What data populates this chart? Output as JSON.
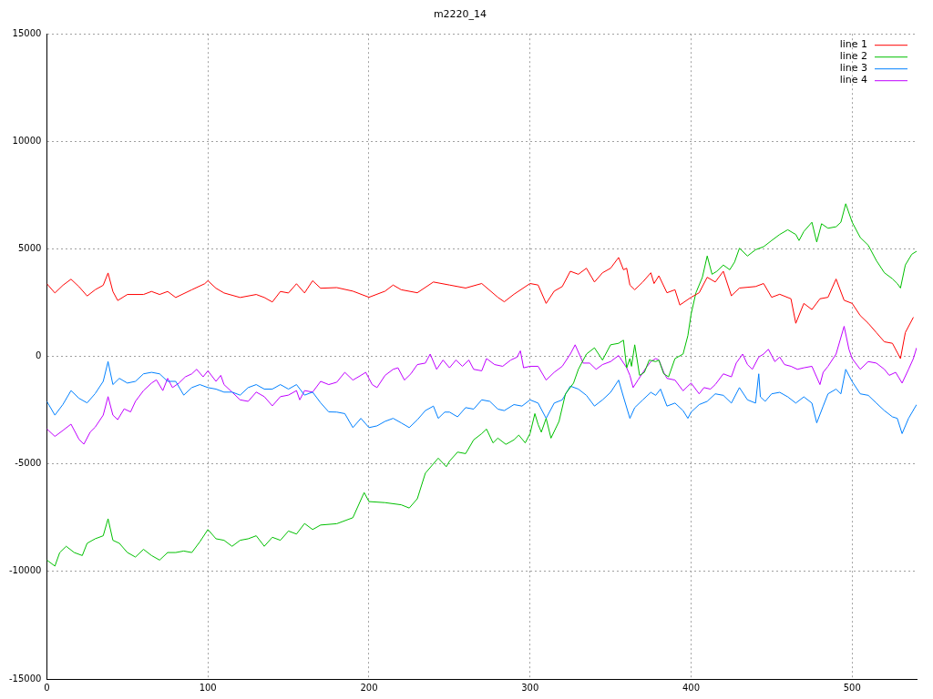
{
  "chart_data": {
    "type": "line",
    "title": "m2220_14",
    "xlim": [
      0,
      540
    ],
    "xticks": [
      0,
      100,
      200,
      300,
      400,
      500
    ],
    "ylim": [
      -15000,
      15000
    ],
    "yticks": [
      -15000,
      -10000,
      -5000,
      0,
      5000,
      10000,
      15000
    ],
    "grid": true,
    "legend": "top right",
    "marker": "none",
    "line_style": "solid",
    "series": [
      {
        "name": "line 1",
        "color": "#ff0000",
        "x": [
          0,
          5,
          10,
          15,
          20,
          25,
          30,
          35,
          38,
          41,
          44,
          50,
          60,
          65,
          70,
          75,
          80,
          90,
          98,
          100,
          105,
          110,
          120,
          130,
          135,
          140,
          145,
          150,
          155,
          160,
          165,
          170,
          180,
          190,
          200,
          210,
          215,
          220,
          230,
          240,
          250,
          260,
          270,
          280,
          284,
          290,
          300,
          305,
          310,
          315,
          320,
          325,
          330,
          335,
          340,
          345,
          350,
          355,
          358,
          360,
          362,
          365,
          370,
          375,
          377,
          380,
          385,
          390,
          393,
          400,
          405,
          410,
          415,
          420,
          425,
          430,
          440,
          445,
          450,
          455,
          462,
          465,
          470,
          475,
          480,
          485,
          490,
          495,
          500,
          505,
          510,
          515,
          520,
          525,
          530,
          533,
          538
        ],
        "values": [
          3380,
          2950,
          3310,
          3590,
          3240,
          2810,
          3100,
          3310,
          3880,
          3020,
          2600,
          2880,
          2880,
          3020,
          2880,
          3020,
          2740,
          3100,
          3380,
          3520,
          3170,
          2950,
          2740,
          2880,
          2740,
          2530,
          3020,
          2950,
          3380,
          2950,
          3520,
          3170,
          3200,
          3035,
          2750,
          3035,
          3320,
          3100,
          2960,
          3460,
          3320,
          3180,
          3390,
          2750,
          2540,
          2890,
          3390,
          3320,
          2465,
          3035,
          3250,
          3960,
          3820,
          4100,
          3460,
          3890,
          4100,
          4600,
          4030,
          4100,
          3320,
          3100,
          3460,
          3890,
          3390,
          3750,
          2960,
          3100,
          2390,
          2750,
          2960,
          3680,
          3460,
          3960,
          2820,
          3180,
          3250,
          3390,
          2750,
          2890,
          2680,
          1540,
          2465,
          2180,
          2680,
          2750,
          3600,
          2610,
          2465,
          1900,
          1540,
          1110,
          680,
          610,
          -100,
          1110,
          1820
        ]
      },
      {
        "name": "line 2",
        "color": "#00c000",
        "x": [
          0,
          5,
          8,
          12,
          17,
          22,
          25,
          30,
          35,
          38,
          41,
          45,
          50,
          55,
          60,
          65,
          70,
          75,
          80,
          85,
          90,
          95,
          100,
          105,
          110,
          115,
          120,
          125,
          130,
          135,
          140,
          145,
          150,
          155,
          160,
          165,
          170,
          180,
          190,
          197,
          200,
          210,
          220,
          225,
          230,
          235,
          243,
          248,
          250,
          255,
          260,
          265,
          270,
          273,
          277,
          280,
          285,
          290,
          293,
          297,
          300,
          303,
          305,
          307,
          310,
          313,
          318,
          322,
          327,
          330,
          335,
          340,
          345,
          350,
          355,
          358,
          360,
          362,
          363,
          365,
          368,
          371,
          374,
          378,
          380,
          383,
          386,
          390,
          395,
          398,
          400,
          403,
          407,
          410,
          413,
          416,
          420,
          424,
          427,
          430,
          435,
          440,
          445,
          450,
          455,
          460,
          465,
          467,
          470,
          475,
          478,
          481,
          485,
          490,
          493,
          496,
          500,
          505,
          510,
          515,
          520,
          525,
          528,
          530,
          533,
          537,
          540
        ],
        "values": [
          -9470,
          -9750,
          -9120,
          -8830,
          -9120,
          -9260,
          -8690,
          -8480,
          -8340,
          -7550,
          -8550,
          -8690,
          -9120,
          -9330,
          -8970,
          -9260,
          -9470,
          -9120,
          -9120,
          -9050,
          -9120,
          -8620,
          -8050,
          -8480,
          -8550,
          -8830,
          -8550,
          -8480,
          -8340,
          -8830,
          -8410,
          -8550,
          -8120,
          -8260,
          -7770,
          -8050,
          -7840,
          -7780,
          -7500,
          -6330,
          -6750,
          -6800,
          -6900,
          -7050,
          -6620,
          -5430,
          -4730,
          -5130,
          -4870,
          -4450,
          -4520,
          -3880,
          -3590,
          -3380,
          -4020,
          -3800,
          -4090,
          -3880,
          -3660,
          -4020,
          -3590,
          -2660,
          -3160,
          -3520,
          -2880,
          -3800,
          -3020,
          -1740,
          -1240,
          -600,
          110,
          400,
          -170,
          540,
          610,
          755,
          -530,
          -100,
          -460,
          540,
          -880,
          -740,
          -170,
          -240,
          -170,
          -810,
          -950,
          -100,
          110,
          970,
          1970,
          2960,
          3680,
          4670,
          3820,
          3960,
          4250,
          4030,
          4390,
          5030,
          4670,
          4960,
          5100,
          5390,
          5670,
          5890,
          5670,
          5390,
          5810,
          6240,
          5320,
          6170,
          5960,
          6030,
          6240,
          7100,
          6240,
          5530,
          5170,
          4460,
          3890,
          3610,
          3390,
          3180,
          4250,
          4750,
          4890
        ]
      },
      {
        "name": "line 3",
        "color": "#0080ff",
        "x": [
          0,
          5,
          10,
          15,
          20,
          25,
          30,
          35,
          38,
          41,
          45,
          50,
          55,
          60,
          65,
          70,
          75,
          80,
          85,
          90,
          95,
          100,
          105,
          110,
          115,
          120,
          125,
          130,
          135,
          140,
          145,
          150,
          155,
          160,
          165,
          170,
          175,
          180,
          185,
          190,
          195,
          200,
          205,
          210,
          215,
          220,
          225,
          230,
          235,
          240,
          243,
          247,
          250,
          255,
          260,
          265,
          270,
          275,
          280,
          284,
          290,
          295,
          300,
          305,
          310,
          315,
          320,
          325,
          330,
          335,
          340,
          345,
          350,
          355,
          358,
          362,
          365,
          370,
          375,
          378,
          381,
          385,
          390,
          395,
          398,
          400,
          405,
          410,
          415,
          420,
          425,
          430,
          435,
          440,
          442,
          443,
          446,
          450,
          455,
          460,
          465,
          470,
          475,
          478,
          482,
          485,
          490,
          493,
          496,
          500,
          505,
          510,
          515,
          520,
          525,
          528,
          531,
          535,
          540
        ],
        "values": [
          -2090,
          -2730,
          -2230,
          -1590,
          -1950,
          -2160,
          -1730,
          -1160,
          -240,
          -1310,
          -1020,
          -1240,
          -1160,
          -810,
          -740,
          -810,
          -1160,
          -1160,
          -1800,
          -1450,
          -1310,
          -1450,
          -1520,
          -1660,
          -1660,
          -1800,
          -1450,
          -1310,
          -1520,
          -1520,
          -1310,
          -1520,
          -1310,
          -1800,
          -1660,
          -2160,
          -2580,
          -2590,
          -2660,
          -3310,
          -2880,
          -3310,
          -3230,
          -3020,
          -2880,
          -3090,
          -3310,
          -2950,
          -2520,
          -2310,
          -2880,
          -2590,
          -2590,
          -2810,
          -2380,
          -2450,
          -2020,
          -2090,
          -2450,
          -2520,
          -2240,
          -2310,
          -2020,
          -2170,
          -2880,
          -2170,
          -2020,
          -1380,
          -1520,
          -1810,
          -2310,
          -2020,
          -1670,
          -1100,
          -1880,
          -2880,
          -2380,
          -2020,
          -1670,
          -1810,
          -1520,
          -2310,
          -2170,
          -2520,
          -2880,
          -2590,
          -2240,
          -2090,
          -1740,
          -1810,
          -2170,
          -1450,
          -2020,
          -2170,
          -810,
          -1880,
          -2090,
          -1740,
          -1670,
          -1880,
          -2170,
          -1880,
          -2170,
          -3090,
          -2310,
          -1740,
          -1520,
          -1740,
          -600,
          -1170,
          -1740,
          -1810,
          -2170,
          -2520,
          -2810,
          -2880,
          -3590,
          -2880,
          -2240
        ]
      },
      {
        "name": "line 4",
        "color": "#c000ff",
        "x": [
          0,
          5,
          10,
          15,
          20,
          23,
          27,
          30,
          35,
          38,
          41,
          44,
          48,
          52,
          55,
          60,
          65,
          68,
          72,
          75,
          78,
          82,
          86,
          90,
          93,
          97,
          100,
          105,
          108,
          110,
          115,
          120,
          125,
          130,
          135,
          140,
          145,
          150,
          155,
          157,
          160,
          165,
          170,
          175,
          180,
          185,
          190,
          195,
          198,
          202,
          205,
          210,
          215,
          218,
          222,
          226,
          230,
          235,
          238,
          242,
          246,
          250,
          254,
          258,
          262,
          265,
          270,
          273,
          278,
          283,
          288,
          292,
          294,
          296,
          300,
          305,
          310,
          315,
          320,
          325,
          328,
          333,
          337,
          341,
          345,
          350,
          355,
          360,
          362,
          364,
          367,
          372,
          375,
          378,
          380,
          383,
          385,
          390,
          395,
          398,
          400,
          405,
          408,
          412,
          415,
          420,
          425,
          428,
          432,
          435,
          438,
          442,
          445,
          448,
          452,
          455,
          458,
          462,
          466,
          470,
          475,
          480,
          482,
          485,
          490,
          495,
          498,
          500,
          505,
          510,
          515,
          520,
          523,
          527,
          531,
          535,
          538,
          540
        ],
        "values": [
          -3370,
          -3720,
          -3440,
          -3150,
          -3860,
          -4080,
          -3510,
          -3290,
          -2730,
          -1870,
          -2730,
          -2940,
          -2440,
          -2580,
          -2090,
          -1590,
          -1240,
          -1090,
          -1590,
          -1020,
          -1450,
          -1240,
          -950,
          -810,
          -600,
          -950,
          -670,
          -1160,
          -880,
          -1310,
          -1660,
          -2020,
          -2090,
          -1660,
          -1870,
          -2300,
          -1870,
          -1800,
          -1590,
          -2020,
          -1590,
          -1660,
          -1160,
          -1310,
          -1200,
          -740,
          -1100,
          -880,
          -740,
          -1310,
          -1450,
          -880,
          -600,
          -530,
          -1100,
          -810,
          -380,
          -310,
          110,
          -600,
          -170,
          -530,
          -170,
          -460,
          -170,
          -600,
          -670,
          -100,
          -380,
          -460,
          -170,
          -30,
          260,
          -530,
          -460,
          -460,
          -1100,
          -740,
          -460,
          110,
          540,
          -310,
          -310,
          -600,
          -380,
          -240,
          40,
          -530,
          -880,
          -1450,
          -1100,
          -530,
          -240,
          -100,
          -170,
          -740,
          -1020,
          -1100,
          -1600,
          -1380,
          -1240,
          -1740,
          -1450,
          -1520,
          -1310,
          -810,
          -950,
          -310,
          110,
          -380,
          -600,
          -30,
          110,
          330,
          -240,
          -30,
          -380,
          -460,
          -600,
          -530,
          -460,
          -1310,
          -740,
          -460,
          110,
          1400,
          330,
          -100,
          -600,
          -240,
          -310,
          -600,
          -880,
          -740,
          -1240,
          -600,
          -100,
          400
        ]
      }
    ]
  }
}
